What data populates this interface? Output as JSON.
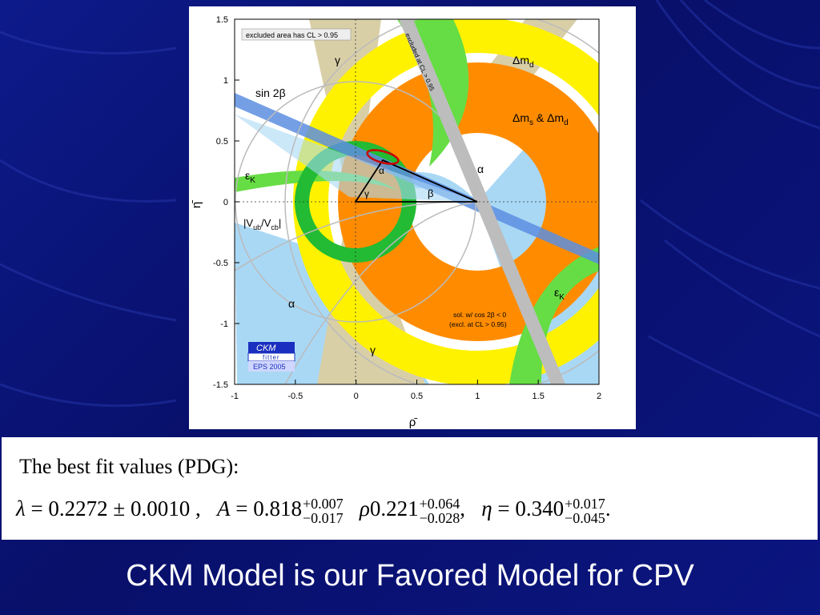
{
  "slide": {
    "title": "CKM Model is our Favored Model for CPV"
  },
  "figure": {
    "excluded_note": "excluded area has CL > 0.95",
    "excluded_band_label": "excluded at CL > 0.95",
    "labels": {
      "gamma": "γ",
      "alpha": "α",
      "beta": "β",
      "sin2beta": "sin 2β",
      "dmd": "Δm",
      "dmd_sub": "d",
      "dms_dmd_a": "Δm",
      "dms_dmd_s": "s",
      "dms_dmd_b": " & Δm",
      "dms_dmd_d": "d",
      "epsk": "ε",
      "epsk_sub": "K",
      "vubvcb_a": "|V",
      "vubvcb_b": "ub",
      "vubvcb_c": "/V",
      "vubvcb_d": "cb",
      "vubvcb_e": "|",
      "sol_line1": "sol. w/ cos 2β < 0",
      "sol_line2": "(excl. at CL > 0.95)"
    },
    "logo": {
      "line1": "CKM",
      "line2": "fitter",
      "line3": "EPS 2005"
    },
    "axes": {
      "x_label": "ρ̄",
      "y_label": "η̄",
      "x_ticks": [
        "-1",
        "-0.5",
        "0",
        "0.5",
        "1",
        "1.5",
        "2"
      ],
      "y_ticks": [
        "1.5",
        "1",
        "0.5",
        "0",
        "-0.5",
        "-1",
        "-1.5"
      ]
    },
    "colors": {
      "gamma_band": "#d9cfa7",
      "dmd_ring": "#fff200",
      "dms_ring": "#ff8c00",
      "epsk_band": "#66dd44",
      "vub_ring": "#22bb33",
      "alpha_band": "#a9d8f5",
      "sin2b_band": "#5c8ee0"
    }
  },
  "fit": {
    "heading": "The best fit values (PDG):",
    "lambda_lhs": "λ",
    "lambda_rest": " = 0.2272 ± 0.0010 ,",
    "a_lhs": "A",
    "a_val": " = 0.818",
    "a_sup": "+0.007",
    "a_sub": "−0.017",
    "rho_lhs": "ρ",
    "rho_val": "0.221",
    "rho_sup": "+0.064",
    "rho_sub": "−0.028",
    "rho_sep": ",",
    "eta_lhs": "η",
    "eta_val": " = 0.340",
    "eta_sup": "+0.017",
    "eta_sub": "−0.045",
    "end": "."
  }
}
